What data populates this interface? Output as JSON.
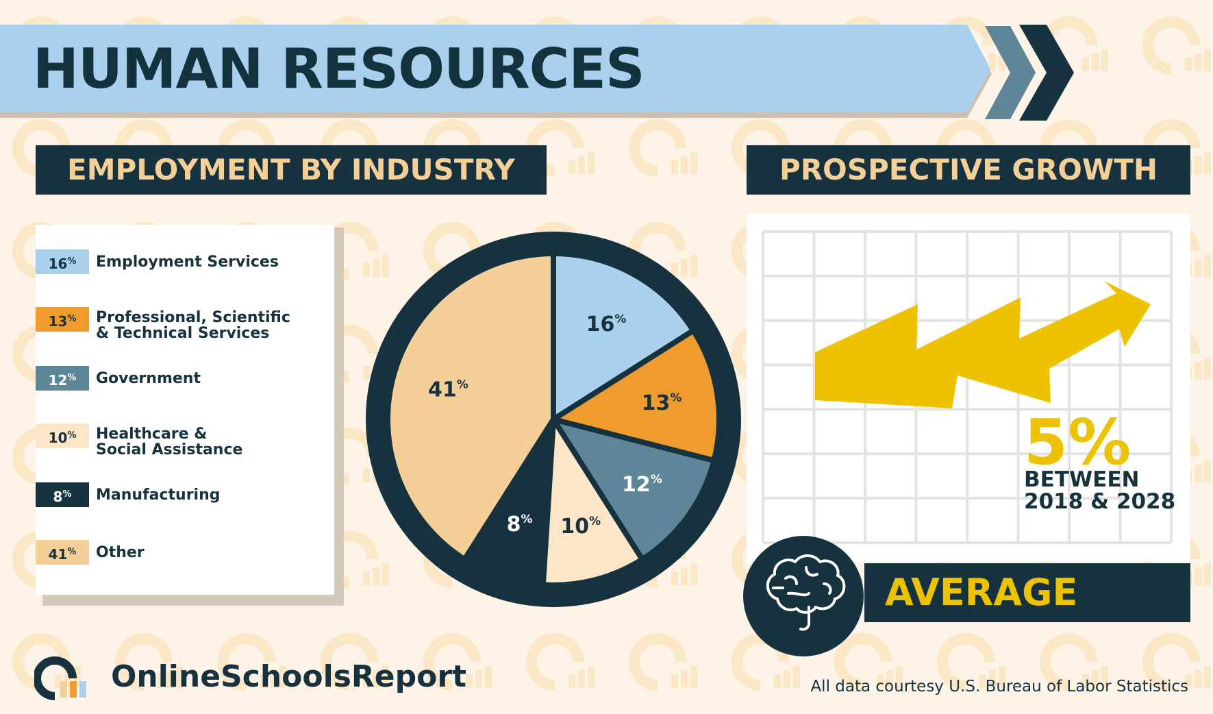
{
  "title": "HUMAN RESOURCES",
  "employment_header": "EMPLOYMENT BY INDUSTRY",
  "growth_header": "PROSPECTIVE GROWTH",
  "growth": {
    "value": "5%",
    "line1": "BETWEEN",
    "line2": "2018 & 2028",
    "rating": "AVERAGE"
  },
  "brand": "OnlineSchoolsReport",
  "source": "All data courtesy U.S. Bureau of Labor Statistics",
  "colors": {
    "navy": "#17323f",
    "light_blue": "#a9d1ee",
    "orange": "#ef9b2d",
    "slate": "#5f8598",
    "cream": "#fde6c8",
    "peach": "#f5cf98",
    "yellow": "#edc200"
  },
  "chart_data": {
    "type": "pie",
    "title": "EMPLOYMENT BY INDUSTRY",
    "legend": "left",
    "slices": [
      {
        "label": "Employment Services",
        "value": 16,
        "display": "16",
        "color": "#a9d1ee",
        "text_color": "#17323f"
      },
      {
        "label": "Professional, Scientific & Technical Services",
        "value": 13,
        "display": "13",
        "color": "#ef9b2d",
        "text_color": "#17323f"
      },
      {
        "label": "Government",
        "value": 12,
        "display": "12",
        "color": "#5f8598",
        "text_color": "#ffffff"
      },
      {
        "label": "Healthcare & Social Assistance",
        "value": 10,
        "display": "10",
        "color": "#fde6c8",
        "text_color": "#17323f"
      },
      {
        "label": "Manufacturing",
        "value": 8,
        "display": "8",
        "color": "#17323f",
        "text_color": "#ffffff"
      },
      {
        "label": "Other",
        "value": 41,
        "display": "41",
        "color": "#f5cf98",
        "text_color": "#17323f"
      }
    ]
  }
}
